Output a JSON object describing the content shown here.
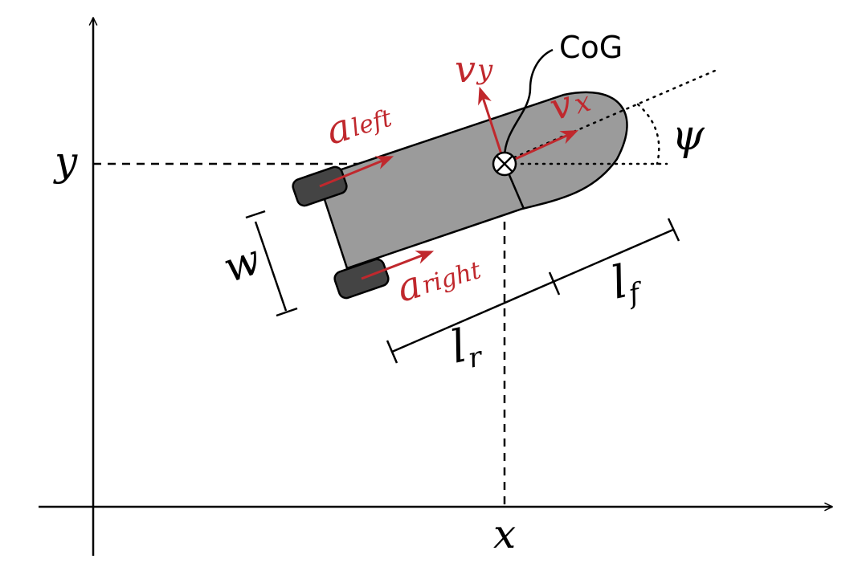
{
  "labels": {
    "x_axis": "x",
    "y_axis": "y",
    "cog": "CoG",
    "v_base": "v",
    "v_x_sub": "x",
    "v_y_sub": "y",
    "a_base": "a",
    "a_left_sub": "left",
    "a_right_sub": "right",
    "l_base": "l",
    "l_r_sub": "r",
    "l_f_sub": "f",
    "w": "w",
    "psi": "ψ"
  },
  "colors": {
    "body_fill": "#9b9b9b",
    "wheel_fill": "#444444",
    "vector_red": "#c0282d",
    "line": "#000000"
  }
}
